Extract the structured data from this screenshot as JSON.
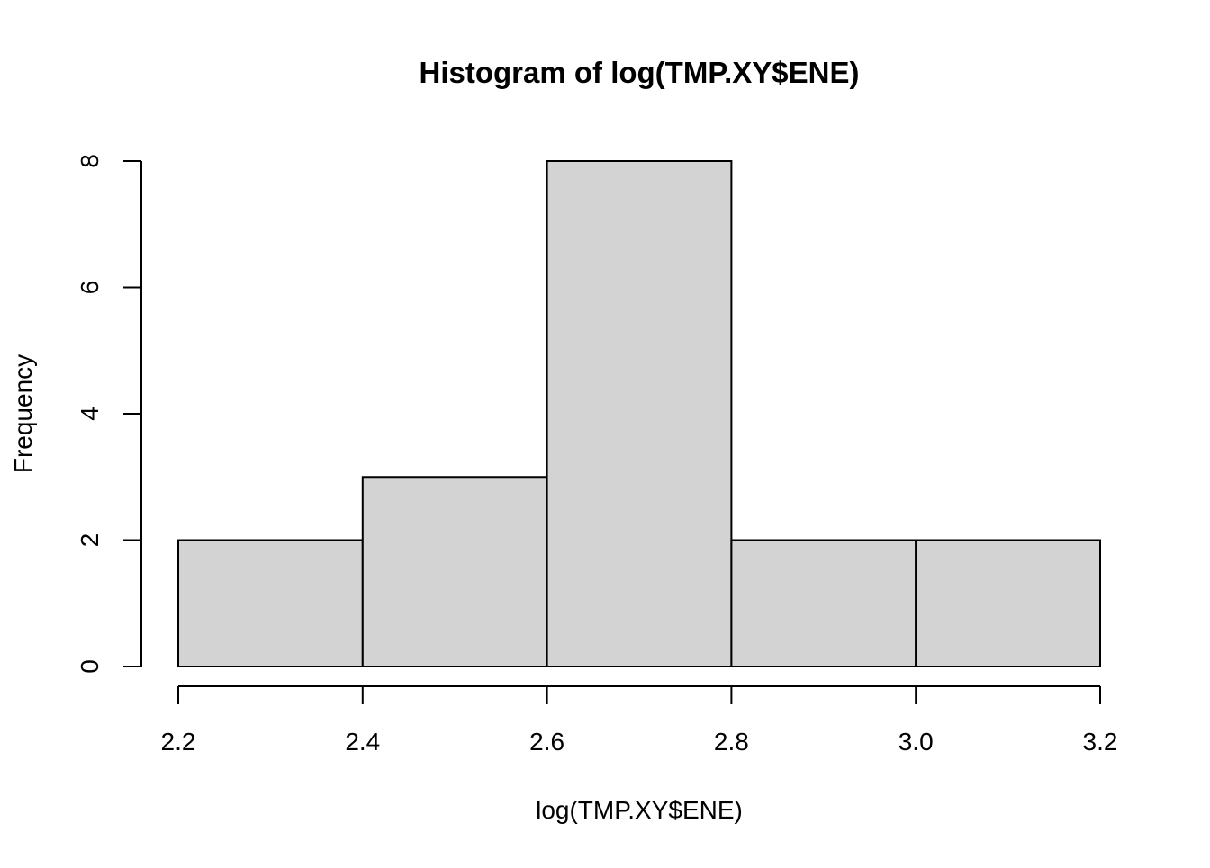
{
  "chart_data": {
    "type": "bar",
    "title": "Histogram of log(TMP.XY$ENE)",
    "xlabel": "log(TMP.XY$ENE)",
    "ylabel": "Frequency",
    "bins": [
      {
        "from": 2.2,
        "to": 2.4,
        "count": 2
      },
      {
        "from": 2.4,
        "to": 2.6,
        "count": 3
      },
      {
        "from": 2.6,
        "to": 2.8,
        "count": 8
      },
      {
        "from": 2.8,
        "to": 3.0,
        "count": 2
      },
      {
        "from": 3.0,
        "to": 3.2,
        "count": 2
      }
    ],
    "xlim": [
      2.2,
      3.2
    ],
    "ylim": [
      0,
      8
    ],
    "x_ticks": [
      "2.2",
      "2.4",
      "2.6",
      "2.8",
      "3.0",
      "3.2"
    ],
    "y_ticks": [
      "0",
      "2",
      "4",
      "6",
      "8"
    ],
    "grid": false,
    "colors": {
      "bar_fill": "#d3d3d3",
      "bar_stroke": "#000000",
      "axis": "#000000",
      "background": "#ffffff"
    }
  }
}
